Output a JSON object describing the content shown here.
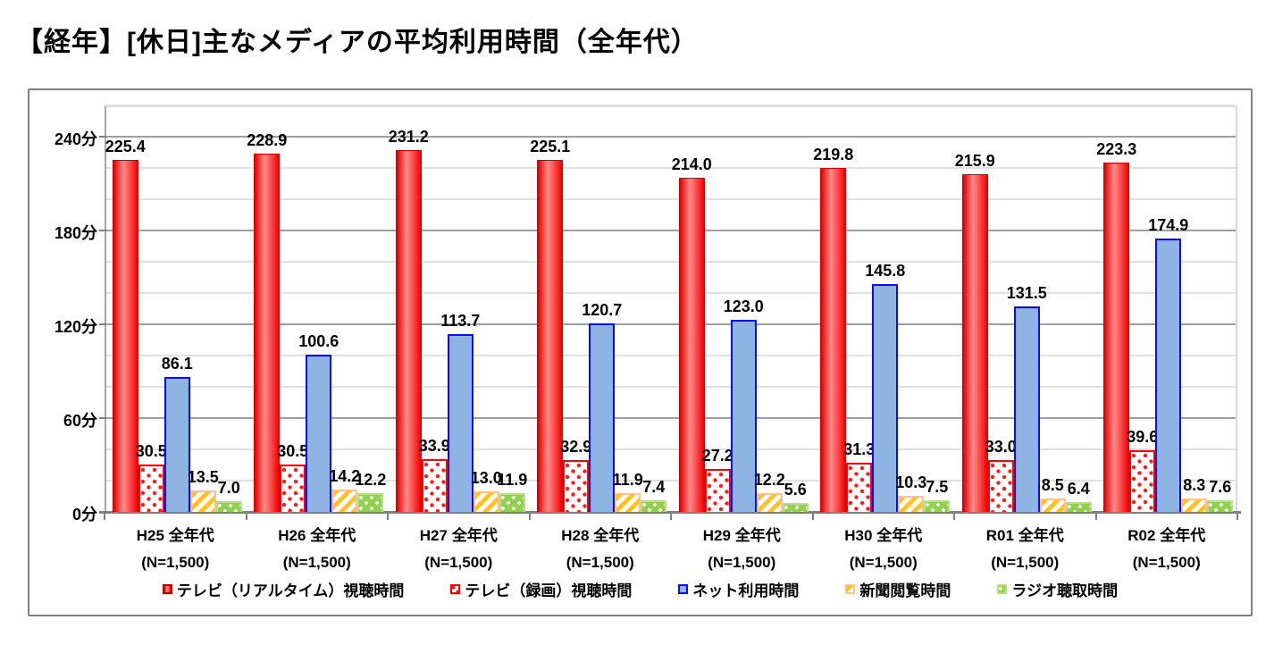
{
  "chart_data": {
    "type": "bar",
    "title": "【経年】[休日]主なメディアの平均利用時間（全年代）",
    "ylabel": "分",
    "ylim": [
      0,
      260
    ],
    "grid": true,
    "minor_grid_step": 20,
    "major_grid_step": 60,
    "legend_position": "bottom",
    "y_major_ticks": [
      {
        "value": 0,
        "label": "0分"
      },
      {
        "value": 60,
        "label": "60分"
      },
      {
        "value": 120,
        "label": "120分"
      },
      {
        "value": 180,
        "label": "180分"
      },
      {
        "value": 240,
        "label": "240分"
      }
    ],
    "categories": [
      {
        "label": "H25 全年代",
        "sublabel": "(N=1,500)"
      },
      {
        "label": "H26 全年代",
        "sublabel": "(N=1,500)"
      },
      {
        "label": "H27 全年代",
        "sublabel": "(N=1,500)"
      },
      {
        "label": "H28 全年代",
        "sublabel": "(N=1,500)"
      },
      {
        "label": "H29 全年代",
        "sublabel": "(N=1,500)"
      },
      {
        "label": "H30 全年代",
        "sublabel": "(N=1,500)"
      },
      {
        "label": "R01 全年代",
        "sublabel": "(N=1,500)"
      },
      {
        "label": "R02 全年代",
        "sublabel": "(N=1,500)"
      }
    ],
    "series": [
      {
        "name": "テレビ（リアルタイム）視聴時間",
        "style": "red-solid",
        "color": "#FF1A1A",
        "values": [
          225.4,
          228.9,
          231.2,
          225.1,
          214.0,
          219.8,
          215.9,
          223.3
        ]
      },
      {
        "name": "テレビ（録画）視聴時間",
        "style": "red-dot-pattern",
        "color": "#FF0000",
        "values": [
          30.5,
          30.5,
          33.9,
          32.9,
          27.2,
          31.3,
          33.0,
          39.6
        ]
      },
      {
        "name": "ネット利用時間",
        "style": "blue-solid",
        "color": "#8DB4E2",
        "values": [
          86.1,
          100.6,
          113.7,
          120.7,
          123.0,
          145.8,
          131.5,
          174.9
        ]
      },
      {
        "name": "新聞閲覧時間",
        "style": "orange-stripes",
        "color": "#FFC000",
        "values": [
          13.5,
          14.2,
          13.0,
          11.9,
          12.2,
          10.3,
          8.5,
          8.3
        ]
      },
      {
        "name": "ラジオ聴取時間",
        "style": "green-dot-pattern",
        "color": "#92D050",
        "values": [
          7.0,
          12.2,
          11.9,
          7.4,
          5.6,
          7.5,
          6.4,
          7.6
        ]
      }
    ]
  }
}
